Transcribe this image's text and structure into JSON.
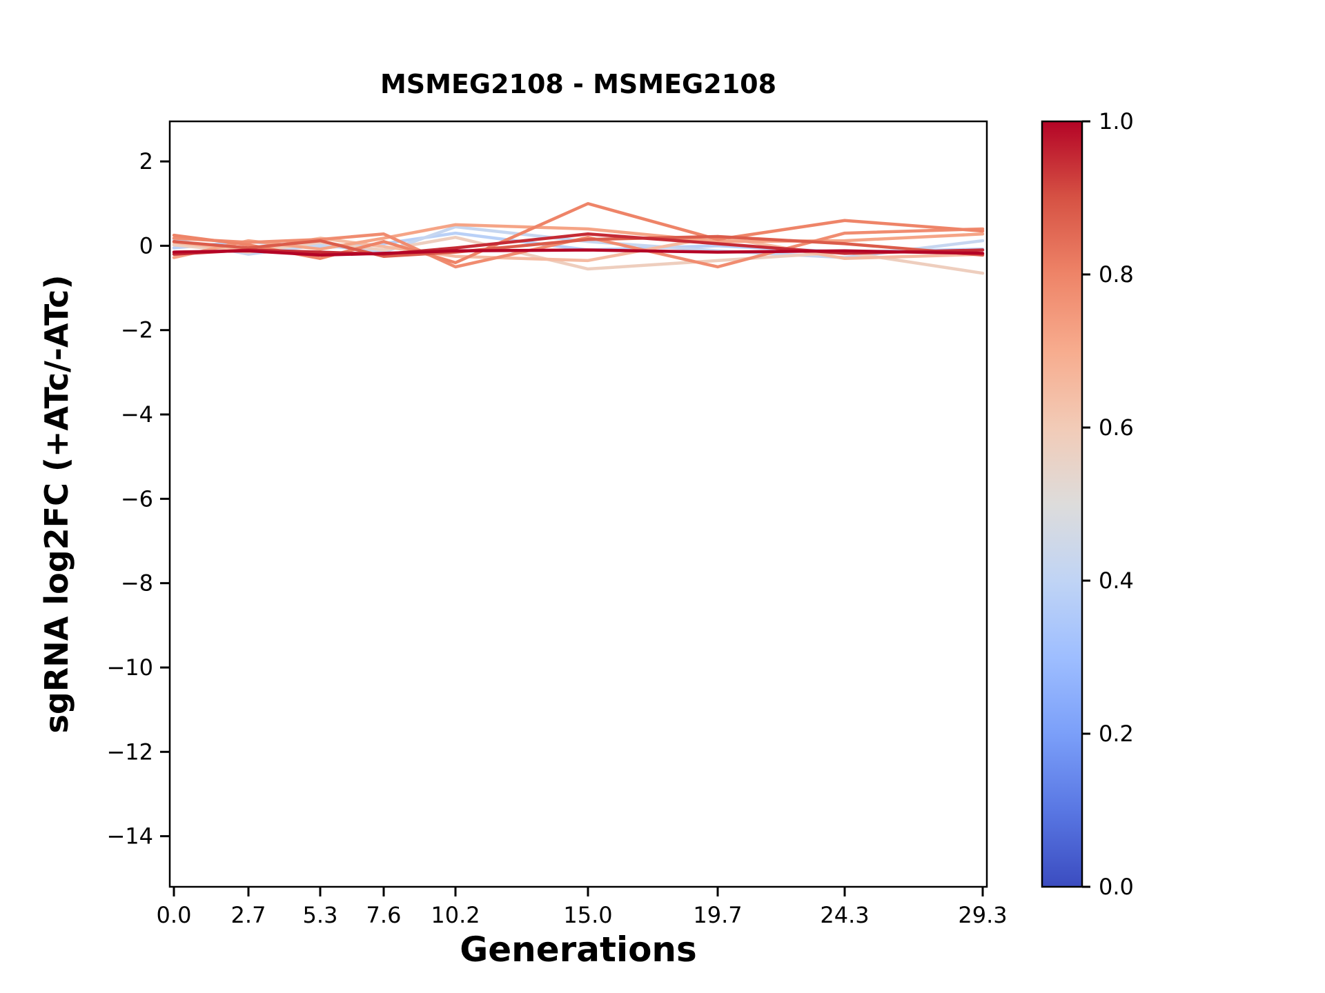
{
  "chart_data": {
    "type": "line",
    "title": "MSMEG2108 - MSMEG2108",
    "xlabel": "Generations",
    "ylabel": "sgRNA log2FC (+ATc/-ATc)",
    "x": [
      0.0,
      2.7,
      5.3,
      7.6,
      10.2,
      15.0,
      19.7,
      24.3,
      29.3
    ],
    "x_tick_labels": [
      "0.0",
      "2.7",
      "5.3",
      "7.6",
      "10.2",
      "15.0",
      "19.7",
      "24.3",
      "29.3"
    ],
    "y_ticks": [
      2,
      0,
      -2,
      -4,
      -6,
      -8,
      -10,
      -12,
      -14
    ],
    "y_tick_labels": [
      "2",
      "0",
      "−2",
      "−4",
      "−6",
      "−8",
      "−10",
      "−12",
      "−14"
    ],
    "xlim": [
      -0.15,
      29.45
    ],
    "ylim": [
      -15.2,
      2.95
    ],
    "grid": false,
    "legend": false,
    "series": [
      {
        "c": 0.38,
        "values": [
          -0.05,
          0.1,
          -0.05,
          0.05,
          0.3,
          -0.1,
          0.0,
          -0.15,
          -0.08
        ]
      },
      {
        "c": 0.42,
        "values": [
          0.15,
          -0.2,
          0.02,
          -0.15,
          0.45,
          0.1,
          -0.12,
          -0.28,
          0.12
        ]
      },
      {
        "c": 0.58,
        "values": [
          0.02,
          -0.15,
          0.08,
          -0.1,
          0.2,
          -0.55,
          -0.35,
          -0.15,
          -0.65
        ]
      },
      {
        "c": 0.65,
        "values": [
          0.08,
          -0.12,
          0.18,
          -0.02,
          -0.25,
          -0.35,
          0.22,
          -0.3,
          -0.2
        ]
      },
      {
        "c": 0.72,
        "values": [
          -0.28,
          0.12,
          -0.08,
          0.18,
          0.5,
          0.4,
          0.1,
          0.12,
          0.28
        ]
      },
      {
        "c": 0.78,
        "values": [
          0.18,
          0.08,
          0.15,
          0.28,
          -0.5,
          0.2,
          -0.5,
          0.3,
          0.4
        ]
      },
      {
        "c": 0.8,
        "values": [
          0.25,
          0.02,
          -0.3,
          0.1,
          -0.4,
          1.0,
          0.15,
          0.6,
          0.35
        ]
      },
      {
        "c": 0.88,
        "values": [
          0.1,
          -0.05,
          0.12,
          -0.25,
          -0.15,
          0.15,
          0.22,
          0.05,
          -0.22
        ]
      },
      {
        "c": 0.95,
        "values": [
          -0.2,
          -0.1,
          -0.15,
          -0.2,
          -0.05,
          0.28,
          0.05,
          -0.18,
          -0.1
        ]
      },
      {
        "c": 1.0,
        "values": [
          -0.15,
          -0.12,
          -0.22,
          -0.18,
          -0.12,
          -0.1,
          -0.15,
          -0.12,
          -0.18
        ]
      }
    ],
    "colorbar": {
      "range": [
        0.0,
        1.0
      ],
      "ticks": [
        0.0,
        0.2,
        0.4,
        0.6,
        0.8,
        1.0
      ],
      "tick_labels": [
        "0.0",
        "0.2",
        "0.4",
        "0.6",
        "0.8",
        "1.0"
      ],
      "position": "right"
    },
    "colormap": {
      "name": "coolwarm",
      "stops": [
        {
          "t": 0.0,
          "color": "#3b4cc0"
        },
        {
          "t": 0.1,
          "color": "#5977e3"
        },
        {
          "t": 0.2,
          "color": "#7b9ff9"
        },
        {
          "t": 0.3,
          "color": "#9ebeff"
        },
        {
          "t": 0.4,
          "color": "#c0d4f5"
        },
        {
          "t": 0.5,
          "color": "#dddcdb"
        },
        {
          "t": 0.6,
          "color": "#f2cbb7"
        },
        {
          "t": 0.7,
          "color": "#f7ac8e"
        },
        {
          "t": 0.8,
          "color": "#ee8468"
        },
        {
          "t": 0.9,
          "color": "#d65244"
        },
        {
          "t": 1.0,
          "color": "#b40426"
        }
      ]
    },
    "colors": {
      "axes": "#000000",
      "background": "#ffffff",
      "text": "#000000"
    }
  }
}
